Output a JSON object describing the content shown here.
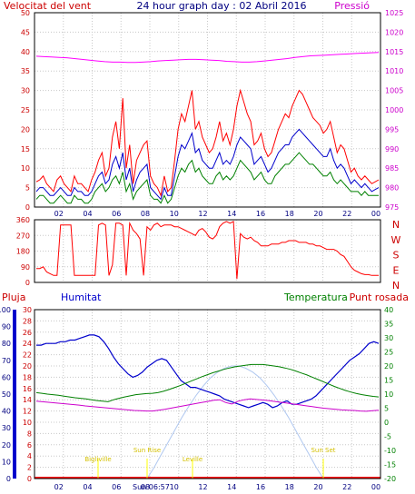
{
  "chart_data": [
    {
      "type": "line",
      "title": "24 hour graph day : 02 Abril 2016",
      "left_axis_label": "Velocitat del vent",
      "right_axis_label": "Pressió",
      "x_tick_labels": [
        "02",
        "04",
        "06",
        "08",
        "10",
        "12",
        "14",
        "16",
        "18",
        "20",
        "22",
        "00"
      ],
      "left_ticks": [
        "0",
        "5",
        "10",
        "15",
        "20",
        "25",
        "30",
        "35",
        "40",
        "45",
        "50"
      ],
      "right_ticks": [
        "975",
        "980",
        "985",
        "990",
        "995",
        "1000",
        "1005",
        "1010",
        "1015",
        "1020",
        "1025"
      ],
      "ylim_left": [
        0,
        50
      ],
      "ylim_right": [
        975,
        1025
      ],
      "series": [
        {
          "color": "#ff0000",
          "axis": "left",
          "note": "wind gust",
          "values": [
            6.5,
            7,
            8,
            6,
            5,
            4,
            7,
            8,
            6,
            5,
            4,
            8,
            6,
            6,
            5,
            4,
            7,
            9,
            12,
            14,
            8,
            10,
            18,
            22,
            15,
            28,
            10,
            16,
            6,
            12,
            14,
            16,
            17,
            8,
            6,
            5,
            3,
            8,
            4,
            5,
            12,
            20,
            24,
            22,
            26,
            30,
            20,
            22,
            18,
            16,
            14,
            15,
            18,
            22,
            17,
            19,
            16,
            20,
            26,
            30,
            27,
            24,
            22,
            16,
            17,
            19,
            15,
            13,
            14,
            17,
            20,
            22,
            24,
            23,
            26,
            28,
            30,
            29,
            27,
            25,
            23,
            22,
            21,
            19,
            20,
            22,
            18,
            14,
            16,
            15,
            12,
            9,
            10,
            8,
            7,
            8,
            7,
            6,
            6.5,
            7
          ]
        },
        {
          "color": "#0000cc",
          "axis": "left",
          "note": "wind average",
          "values": [
            4,
            5,
            5,
            4,
            3,
            3,
            4,
            5,
            4,
            3,
            3,
            5,
            4,
            4,
            3,
            3,
            4,
            6,
            8,
            9,
            6,
            7,
            11,
            13,
            10,
            14,
            7,
            10,
            4,
            7,
            9,
            10,
            11,
            5,
            4,
            3,
            2,
            5,
            3,
            3,
            8,
            13,
            16,
            15,
            17,
            19,
            14,
            15,
            12,
            11,
            10,
            10,
            12,
            14,
            11,
            12,
            11,
            13,
            16,
            18,
            17,
            16,
            15,
            11,
            12,
            13,
            11,
            9,
            10,
            12,
            14,
            15,
            16,
            16,
            18,
            19,
            20,
            19,
            18,
            17,
            16,
            15,
            14,
            13,
            13,
            15,
            12,
            10,
            11,
            10,
            8,
            6,
            7,
            6,
            5,
            6,
            5,
            4,
            4.5,
            5
          ]
        },
        {
          "color": "#008000",
          "axis": "left",
          "note": "wind speed",
          "values": [
            2,
            3,
            3,
            2,
            1,
            1,
            2,
            3,
            2,
            1,
            1,
            3,
            2,
            2,
            1,
            1,
            2,
            4,
            5,
            6,
            4,
            5,
            7,
            8,
            6,
            9,
            4,
            6,
            2,
            4,
            5,
            6,
            7,
            3,
            2,
            2,
            1,
            3,
            1,
            2,
            5,
            8,
            10,
            9,
            11,
            12,
            9,
            10,
            8,
            7,
            6,
            6,
            8,
            9,
            7,
            8,
            7,
            8,
            10,
            12,
            11,
            10,
            9,
            7,
            8,
            9,
            7,
            6,
            6,
            8,
            9,
            10,
            11,
            11,
            12,
            13,
            14,
            13,
            12,
            11,
            11,
            10,
            9,
            8,
            8,
            9,
            7,
            6,
            7,
            6,
            5,
            4,
            4,
            4,
            3,
            4,
            3,
            3,
            3,
            3
          ]
        },
        {
          "color": "#ff00ff",
          "axis": "right",
          "note": "pressure",
          "values": [
            1013.8,
            1013.7,
            1013.6,
            1013.5,
            1013.4,
            1013.2,
            1013.0,
            1012.8,
            1012.6,
            1012.4,
            1012.3,
            1012.3,
            1012.2,
            1012.2,
            1012.3,
            1012.4,
            1012.6,
            1012.7,
            1012.8,
            1012.9,
            1013.0,
            1013.0,
            1012.9,
            1012.8,
            1012.7,
            1012.5,
            1012.4,
            1012.3,
            1012.3,
            1012.4,
            1012.6,
            1012.8,
            1013.0,
            1013.2,
            1013.5,
            1013.7,
            1013.9,
            1014.0,
            1014.1,
            1014.2,
            1014.3,
            1014.4,
            1014.5,
            1014.6,
            1014.7,
            1014.8
          ]
        }
      ]
    },
    {
      "type": "line",
      "title": "",
      "right_axis_label": "N W S E N",
      "compass": [
        "N",
        "W",
        "S",
        "E",
        "N"
      ],
      "left_ticks": [
        "0",
        "90",
        "180",
        "270",
        "360"
      ],
      "ylim": [
        0,
        360
      ],
      "series": [
        {
          "color": "#ff0000",
          "note": "wind direction",
          "values": [
            80,
            80,
            90,
            60,
            50,
            40,
            40,
            330,
            330,
            330,
            330,
            40,
            40,
            40,
            40,
            40,
            40,
            40,
            330,
            340,
            330,
            40,
            100,
            340,
            340,
            330,
            40,
            340,
            300,
            280,
            250,
            40,
            320,
            300,
            330,
            340,
            320,
            330,
            330,
            330,
            320,
            320,
            310,
            300,
            290,
            280,
            270,
            300,
            310,
            290,
            260,
            250,
            270,
            320,
            340,
            350,
            340,
            350,
            20,
            280,
            260,
            250,
            260,
            240,
            230,
            210,
            210,
            210,
            220,
            220,
            220,
            230,
            230,
            240,
            240,
            240,
            230,
            230,
            230,
            220,
            220,
            210,
            210,
            200,
            190,
            190,
            190,
            180,
            160,
            150,
            120,
            90,
            70,
            60,
            50,
            45,
            45,
            40,
            40,
            40
          ]
        }
      ]
    },
    {
      "type": "line",
      "title": "",
      "labels": {
        "pluja": "Pluja",
        "humitat": "Humitat",
        "temperatura": "Temperatura",
        "punt_rosada": "Punt rosada"
      },
      "pluja_ticks": [
        "0",
        "2",
        "4",
        "6",
        "8",
        "10",
        "12",
        "14",
        "16",
        "18",
        "20",
        "22",
        "24",
        "26",
        "28",
        "30"
      ],
      "humitat_ticks": [
        "0",
        "10",
        "20",
        "30",
        "40",
        "50",
        "60",
        "70",
        "80",
        "90",
        "100"
      ],
      "temp_ticks": [
        "-20",
        "-15",
        "-10",
        "-5",
        "0",
        "5",
        "10",
        "15",
        "20",
        "25",
        "30",
        "35",
        "40"
      ],
      "ylim_humitat": [
        0,
        100
      ],
      "ylim_temp": [
        -20,
        40
      ],
      "markers": [
        "Bigliville",
        "Sun Rise",
        "Leville",
        "Sun Set"
      ],
      "sun_time": "Sun 06:57",
      "series": [
        {
          "color": "#0000cc",
          "axis": "humitat",
          "note": "humidity",
          "values": [
            79,
            79,
            80,
            80,
            80,
            81,
            81,
            82,
            82,
            83,
            84,
            85,
            85,
            84,
            81,
            77,
            72,
            68,
            65,
            62,
            60,
            61,
            63,
            66,
            68,
            70,
            71,
            70,
            66,
            62,
            58,
            56,
            54,
            54,
            53,
            52,
            51,
            50,
            49,
            47,
            46,
            45,
            44,
            43,
            42,
            43,
            44,
            45,
            44,
            42,
            43,
            45,
            46,
            44,
            44,
            45,
            46,
            47,
            49,
            52,
            55,
            58,
            61,
            64,
            67,
            70,
            72,
            74,
            77,
            80,
            81,
            80
          ]
        },
        {
          "color": "#008000",
          "axis": "temp",
          "note": "temperature",
          "values": [
            10.5,
            10.3,
            10.0,
            9.8,
            9.6,
            9.3,
            9.0,
            8.7,
            8.5,
            8.3,
            8.0,
            7.7,
            7.5,
            7.3,
            8.0,
            8.5,
            9.0,
            9.4,
            9.8,
            10.0,
            10.2,
            10.3,
            10.5,
            11.0,
            11.6,
            12.3,
            13.0,
            13.8,
            14.6,
            15.4,
            16.2,
            16.9,
            17.6,
            18.2,
            18.8,
            19.3,
            19.7,
            20.0,
            20.3,
            20.5,
            20.5,
            20.5,
            20.3,
            20.0,
            19.7,
            19.3,
            18.8,
            18.2,
            17.5,
            16.8,
            16.0,
            15.2,
            14.4,
            13.5,
            12.7,
            12.0,
            11.3,
            10.7,
            10.2,
            9.8,
            9.5,
            9.2,
            9.0
          ]
        },
        {
          "color": "#cc00cc",
          "axis": "temp",
          "note": "dew point",
          "values": [
            7.5,
            7.3,
            7.1,
            6.9,
            6.7,
            6.5,
            6.3,
            6.1,
            5.8,
            5.6,
            5.4,
            5.2,
            5.0,
            4.8,
            4.6,
            4.4,
            4.2,
            4.1,
            4.0,
            4.0,
            4.3,
            4.6,
            5.0,
            5.4,
            5.8,
            6.2,
            6.6,
            7.0,
            7.4,
            7.8,
            8.0,
            7.0,
            6.5,
            7.5,
            8.0,
            8.3,
            8.1,
            7.9,
            7.7,
            7.4,
            7.1,
            6.8,
            6.5,
            6.2,
            5.9,
            5.6,
            5.3,
            5.0,
            4.8,
            4.6,
            4.4,
            4.3,
            4.2,
            4.0,
            3.9,
            4.1,
            4.3
          ]
        },
        {
          "color": "#b0c8f0",
          "axis": "temp",
          "note": "solar curve",
          "values": [
            -20,
            -16,
            -11.5,
            -7,
            -2.5,
            2,
            6,
            9.7,
            13,
            15.8,
            17.8,
            19.2,
            20,
            20,
            19.2,
            17.8,
            15.8,
            13,
            9.7,
            6,
            2,
            -2.5,
            -7,
            -11.5,
            -16,
            -20
          ]
        },
        {
          "color": "#ff0000",
          "axis": "pluja",
          "note": "rain",
          "values": [
            0,
            0
          ]
        }
      ]
    }
  ],
  "colors": {
    "red": "#ff0000",
    "blue": "#0000cc",
    "magenta": "#cc00cc",
    "green": "#008000",
    "navy": "#000080",
    "sun": "#b0c8f0",
    "marker": "#ffff00"
  }
}
